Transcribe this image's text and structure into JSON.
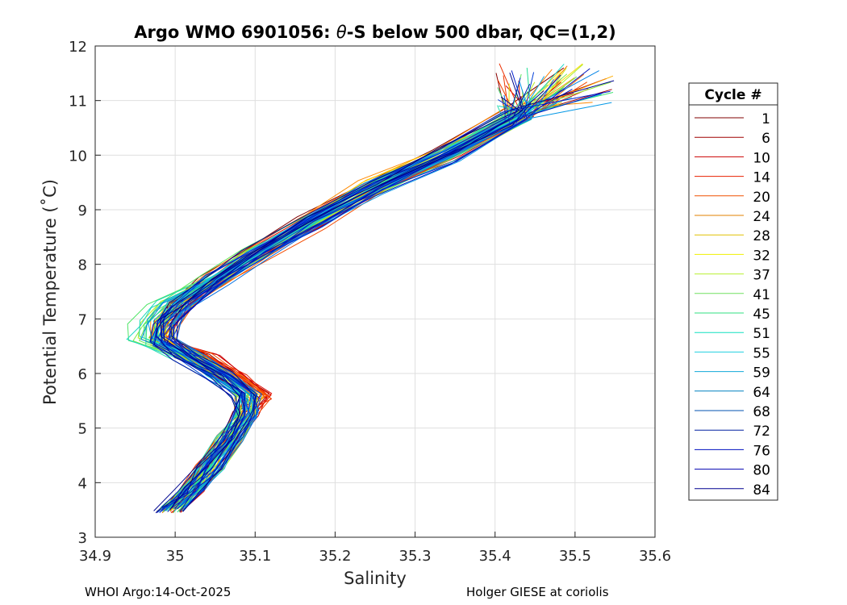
{
  "chart_data": {
    "type": "line",
    "title": "Argo WMO 6901056: θ-S below 500 dbar,  QC=(1,2)",
    "title_parts": {
      "prefix": "Argo WMO 6901056: ",
      "theta": "θ",
      "suffix": "-S below 500 dbar,  QC=(1,2)"
    },
    "xlabel": "Salinity",
    "ylabel": "Potential Temperature (˚C)",
    "xlim": [
      34.9,
      35.6
    ],
    "ylim": [
      3,
      12
    ],
    "xticks": [
      34.9,
      35,
      35.1,
      35.2,
      35.3,
      35.4,
      35.5,
      35.6
    ],
    "xtick_labels": [
      "34.9",
      "35",
      "35.1",
      "35.2",
      "35.3",
      "35.4",
      "35.5",
      "35.6"
    ],
    "yticks": [
      3,
      4,
      5,
      6,
      7,
      8,
      9,
      10,
      11,
      12
    ],
    "ytick_labels": [
      "3",
      "4",
      "5",
      "6",
      "7",
      "8",
      "9",
      "10",
      "11",
      "12"
    ],
    "grid": true,
    "legend": {
      "title": "Cycle #",
      "placement": "outside-right",
      "entries": [
        {
          "label": "1",
          "color": "#800000"
        },
        {
          "label": "6",
          "color": "#a00000"
        },
        {
          "label": "10",
          "color": "#cc0000"
        },
        {
          "label": "14",
          "color": "#e82000"
        },
        {
          "label": "20",
          "color": "#f05000"
        },
        {
          "label": "24",
          "color": "#e08000"
        },
        {
          "label": "28",
          "color": "#e0c000"
        },
        {
          "label": "32",
          "color": "#f0f000"
        },
        {
          "label": "37",
          "color": "#b8f030"
        },
        {
          "label": "41",
          "color": "#70e060"
        },
        {
          "label": "45",
          "color": "#30e080"
        },
        {
          "label": "51",
          "color": "#10e0c0"
        },
        {
          "label": "55",
          "color": "#20d0e0"
        },
        {
          "label": "59",
          "color": "#10a8d8"
        },
        {
          "label": "64",
          "color": "#0080c0"
        },
        {
          "label": "68",
          "color": "#0050b0"
        },
        {
          "label": "72",
          "color": "#0020a0"
        },
        {
          "label": "76",
          "color": "#0010c0"
        },
        {
          "label": "80",
          "color": "#0000b0"
        },
        {
          "label": "84",
          "color": "#000090"
        }
      ]
    },
    "base_profile": [
      {
        "s": 34.995,
        "t": 3.5
      },
      {
        "s": 35.02,
        "t": 3.85
      },
      {
        "s": 35.045,
        "t": 4.3
      },
      {
        "s": 35.07,
        "t": 4.8
      },
      {
        "s": 35.09,
        "t": 5.25
      },
      {
        "s": 35.092,
        "t": 5.6
      },
      {
        "s": 35.06,
        "t": 5.95
      },
      {
        "s": 35.02,
        "t": 6.3
      },
      {
        "s": 34.985,
        "t": 6.6
      },
      {
        "s": 34.99,
        "t": 6.9
      },
      {
        "s": 35.01,
        "t": 7.25
      },
      {
        "s": 35.05,
        "t": 7.7
      },
      {
        "s": 35.1,
        "t": 8.15
      },
      {
        "s": 35.17,
        "t": 8.75
      },
      {
        "s": 35.25,
        "t": 9.4
      },
      {
        "s": 35.34,
        "t": 10.0
      },
      {
        "s": 35.43,
        "t": 10.7
      },
      {
        "s": 35.52,
        "t": 11.3
      }
    ]
  },
  "footer": {
    "left": "WHOI Argo:14-Oct-2025",
    "right": "Holger GIESE at coriolis"
  }
}
